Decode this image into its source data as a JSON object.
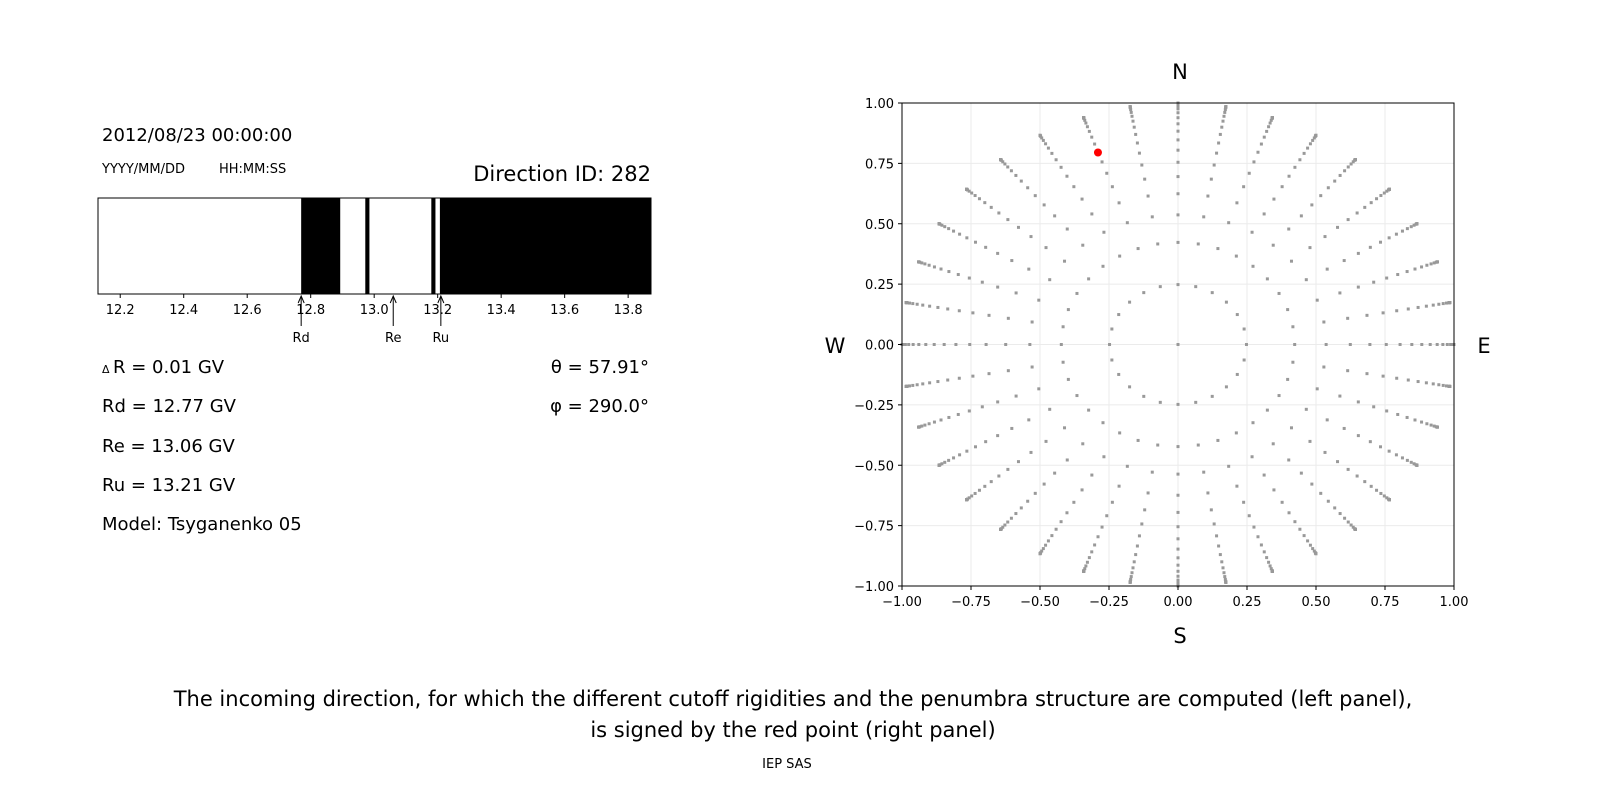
{
  "left_panel": {
    "datetime": "2012/08/23 00:00:00",
    "date_format": "YYYY/MM/DD",
    "time_format": "HH:MM:SS",
    "direction_id": "Direction ID: 282",
    "delta_r": "R = 0.01 GV",
    "delta_symbol": "Δ",
    "rd": "Rd = 12.77 GV",
    "re": "Re = 13.06 GV",
    "ru": "Ru = 13.21 GV",
    "model": "Model: Tsyganenko 05",
    "theta": "θ = 57.91°",
    "phi": "φ = 290.0°"
  },
  "caption": {
    "line1": "The incoming direction, for which the different cutoff rigidities and the penumbra structure are computed (left panel),",
    "line2": "is signed by the red point (right panel)",
    "credit": "IEP SAS"
  },
  "chart_data": [
    {
      "type": "bar",
      "description_kind": "penumbra",
      "xlim": [
        12.13,
        13.872
      ],
      "xticks": [
        "12.2",
        "12.4",
        "12.6",
        "12.8",
        "13.0",
        "13.2",
        "13.4",
        "13.6",
        "13.8"
      ],
      "forbidden_bands": [
        [
          12.77,
          12.893
        ],
        [
          12.972,
          12.985
        ],
        [
          13.18,
          13.193
        ],
        [
          13.207,
          13.872
        ]
      ],
      "band_color": "#000000",
      "markers": [
        {
          "label": "Rd",
          "value": 12.77
        },
        {
          "label": "Re",
          "value": 13.06
        },
        {
          "label": "Ru",
          "value": 13.21
        }
      ]
    },
    {
      "type": "scatter",
      "xlim": [
        -1,
        1
      ],
      "ylim": [
        -1,
        1
      ],
      "grid": true,
      "xticks": [
        "−1.00",
        "−0.75",
        "−0.50",
        "−0.25",
        "0.00",
        "0.25",
        "0.50",
        "0.75",
        "1.00"
      ],
      "yticks": [
        "−1.00",
        "−0.75",
        "−0.50",
        "−0.25",
        "0.00",
        "0.25",
        "0.50",
        "0.75",
        "1.00"
      ],
      "compass": {
        "north": "N",
        "south": "S",
        "west": "W",
        "east": "E"
      },
      "grid_point_color": "#999999",
      "grid_pattern": {
        "rings": 16,
        "cos_step": 0.0625,
        "inner_ring_azimuths": 24,
        "spoke_azimuths": 36,
        "center_point": true
      },
      "selected_point": {
        "x": -0.29,
        "y": 0.795,
        "color": "#ff0000"
      }
    }
  ]
}
